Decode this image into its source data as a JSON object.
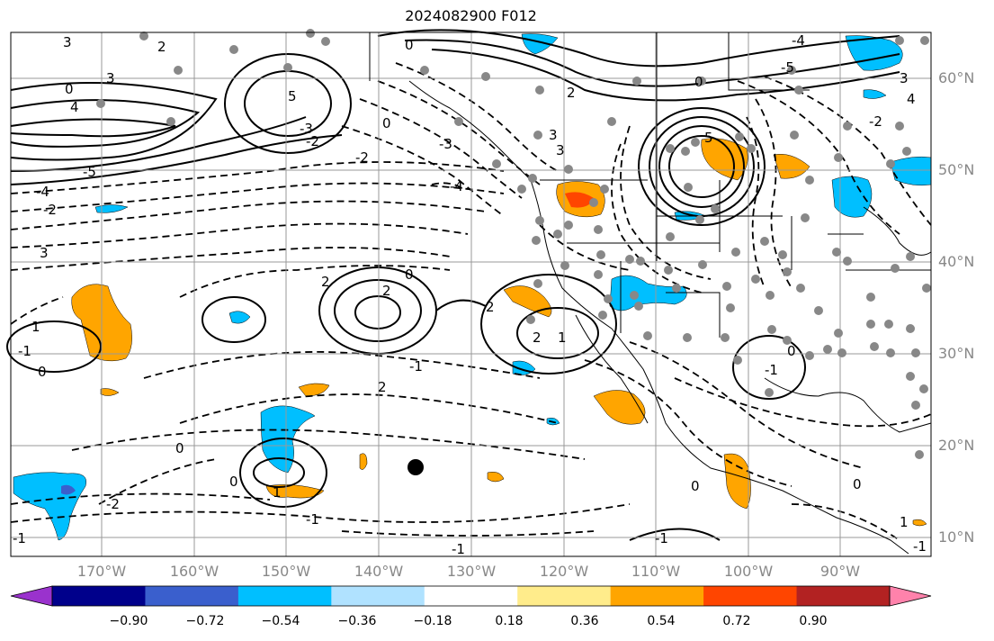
{
  "title": "2024082900 F012",
  "lat_labels": [
    "60°N",
    "50°N",
    "40°N",
    "30°N",
    "20°N",
    "10°N"
  ],
  "lon_labels": [
    "170°W",
    "160°W",
    "150°W",
    "140°W",
    "130°W",
    "120°W",
    "110°W",
    "100°W",
    "90°W"
  ],
  "colorbar": {
    "tick_labels": [
      "−0.90",
      "−0.72",
      "−0.54",
      "−0.36",
      "−0.18",
      "0.18",
      "0.36",
      "0.54",
      "0.72",
      "0.90"
    ],
    "colors": [
      "#9a32cd",
      "#00008b",
      "#3a5fcd",
      "#00bfff",
      "#b0e2ff",
      "#ffffff",
      "#ffec8b",
      "#ffa500",
      "#ff4500",
      "#b22222",
      "#ff82ab"
    ]
  },
  "contour_labels": [
    "3",
    "2",
    "0",
    "3",
    "4",
    "-4",
    "-2",
    "3",
    "0",
    "2",
    "3",
    "-4",
    "-2",
    "0",
    "-4",
    "4",
    "3",
    "-5",
    "5",
    "-3",
    "-2",
    "-5",
    "5",
    "-2",
    "-3",
    "2",
    "-1",
    "0",
    "1",
    "-1",
    "0",
    "2",
    "2",
    "0",
    "2",
    "1",
    "2",
    "1",
    "-1",
    "-2",
    "-1",
    "0",
    "-1",
    "-1",
    "0",
    "0",
    "-1",
    "0",
    "1",
    "-1",
    "0",
    "3"
  ],
  "colors": {
    "positive_fill_mid": "#ffa500",
    "positive_fill_high": "#ff4500",
    "negative_fill": "#00bfff",
    "negative_fill_strong": "#3a5fcd",
    "station_dot": "#888888",
    "grid": "#999999"
  }
}
